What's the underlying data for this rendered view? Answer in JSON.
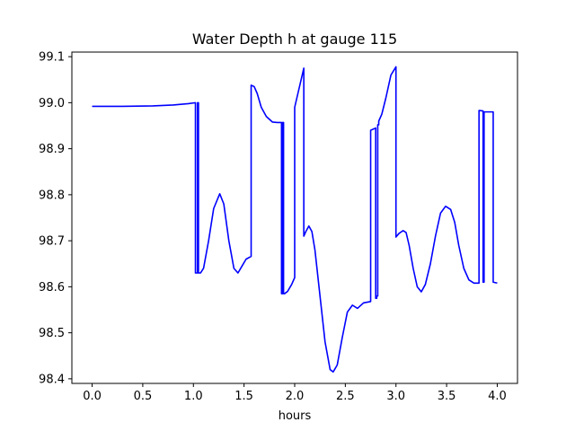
{
  "chart_data": {
    "type": "line",
    "title": "Water Depth h at gauge 115",
    "xlabel": "hours",
    "ylabel": "",
    "xlim": [
      -0.2,
      4.2
    ],
    "ylim": [
      98.39,
      99.11
    ],
    "grid": false,
    "x_ticks": [
      0.0,
      0.5,
      1.0,
      1.5,
      2.0,
      2.5,
      3.0,
      3.5,
      4.0
    ],
    "x_tick_labels": [
      "0.0",
      "0.5",
      "1.0",
      "1.5",
      "2.0",
      "2.5",
      "3.0",
      "3.5",
      "4.0"
    ],
    "y_ticks": [
      98.4,
      98.5,
      98.6,
      98.7,
      98.8,
      98.9,
      99.0,
      99.1
    ],
    "y_tick_labels": [
      "98.4",
      "98.5",
      "98.6",
      "98.7",
      "98.8",
      "98.9",
      "99.0",
      "99.1"
    ],
    "series": [
      {
        "color": "#0000ff",
        "x": [
          0.0,
          0.3,
          0.6,
          0.8,
          0.95,
          1.02,
          1.02,
          1.04,
          1.04,
          1.05,
          1.05,
          1.07,
          1.1,
          1.15,
          1.2,
          1.26,
          1.3,
          1.35,
          1.4,
          1.44,
          1.48,
          1.52,
          1.57,
          1.57,
          1.6,
          1.63,
          1.67,
          1.72,
          1.78,
          1.83,
          1.87,
          1.87,
          1.88,
          1.88,
          1.89,
          1.89,
          1.9,
          1.9,
          1.93,
          1.97,
          2.0,
          2.0,
          2.09,
          2.09,
          2.11,
          2.14,
          2.17,
          2.2,
          2.25,
          2.3,
          2.35,
          2.38,
          2.42,
          2.47,
          2.52,
          2.57,
          2.62,
          2.68,
          2.75,
          2.75,
          2.8,
          2.8,
          2.81,
          2.81,
          2.82,
          2.82,
          2.83,
          2.83,
          2.86,
          2.9,
          2.95,
          3.0,
          3.0,
          3.03,
          3.07,
          3.1,
          3.13,
          3.17,
          3.21,
          3.25,
          3.29,
          3.34,
          3.39,
          3.44,
          3.49,
          3.54,
          3.58,
          3.62,
          3.67,
          3.72,
          3.77,
          3.82,
          3.82,
          3.86,
          3.86,
          3.87,
          3.87,
          3.96,
          3.96,
          4.0
        ],
        "y": [
          98.992,
          98.992,
          98.993,
          98.995,
          98.998,
          99.0,
          98.63,
          98.63,
          99.0,
          99.0,
          98.63,
          98.63,
          98.64,
          98.7,
          98.77,
          98.802,
          98.78,
          98.7,
          98.64,
          98.63,
          98.645,
          98.66,
          98.666,
          99.038,
          99.035,
          99.02,
          98.99,
          98.97,
          98.958,
          98.957,
          98.957,
          98.585,
          98.585,
          98.957,
          98.957,
          98.585,
          98.585,
          98.585,
          98.59,
          98.605,
          98.62,
          98.99,
          99.075,
          98.71,
          98.72,
          98.732,
          98.72,
          98.68,
          98.58,
          98.48,
          98.42,
          98.415,
          98.43,
          98.49,
          98.545,
          98.56,
          98.553,
          98.565,
          98.568,
          98.94,
          98.945,
          98.575,
          98.575,
          98.58,
          98.58,
          98.952,
          98.952,
          98.96,
          98.975,
          99.01,
          99.06,
          99.078,
          98.708,
          98.716,
          98.722,
          98.718,
          98.69,
          98.64,
          98.6,
          98.589,
          98.605,
          98.65,
          98.71,
          98.76,
          98.775,
          98.768,
          98.74,
          98.69,
          98.64,
          98.615,
          98.608,
          98.608,
          98.983,
          98.982,
          98.61,
          98.61,
          98.98,
          98.98,
          98.61,
          98.608
        ]
      }
    ]
  }
}
